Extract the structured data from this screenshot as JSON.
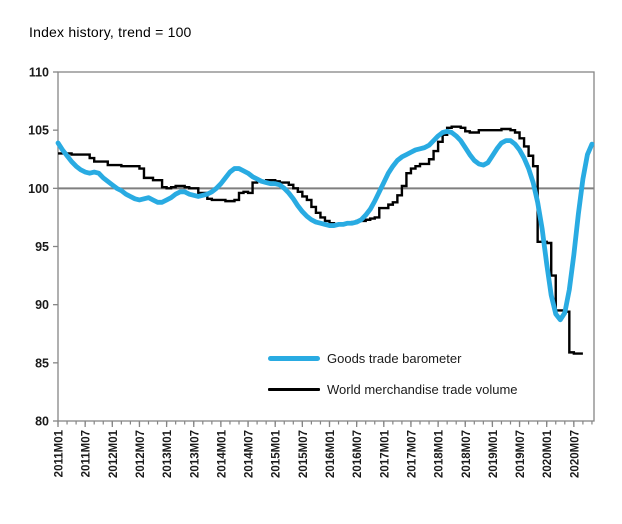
{
  "title": "Index history, trend = 100",
  "colors": {
    "barometer": "#29ABE2",
    "volume": "#000000",
    "reference_line": "#7f7f7f",
    "frame": "#858585",
    "tick_text": "#1a1a1a"
  },
  "legend": {
    "items": [
      {
        "label": "Goods trade barometer",
        "color": "#29ABE2"
      },
      {
        "label": "World merchandise trade volume",
        "color": "#000000"
      }
    ]
  },
  "chart_data": {
    "type": "line",
    "title": "Index history, trend = 100",
    "xlabel": "",
    "ylabel": "",
    "ylim": [
      80,
      110
    ],
    "yticks": [
      80,
      85,
      90,
      95,
      100,
      105,
      110
    ],
    "reference_line": 100,
    "grid": "horizontal line at 100 only",
    "legend_position": "inside lower-center",
    "x_unit": "month",
    "x_start": "2011M01",
    "x_tick_labels": [
      "2011M01",
      "2011M07",
      "2012M01",
      "2012M07",
      "2013M01",
      "2013M07",
      "2014M01",
      "2014M07",
      "2015M01",
      "2015M07",
      "2016M01",
      "2016M07",
      "2017M01",
      "2017M07",
      "2018M01",
      "2018M07",
      "2019M01",
      "2019M07",
      "2020M01",
      "2020M07"
    ],
    "x_major_tick_every_months": 6,
    "x_minor_tick_every_months": 2,
    "series": [
      {
        "name": "Goods trade barometer",
        "color": "#29ABE2",
        "style": "smooth",
        "start": "2011M01",
        "end": "2020M11",
        "values": [
          103.9,
          103.3,
          102.8,
          102.3,
          101.9,
          101.6,
          101.4,
          101.3,
          101.4,
          101.3,
          100.9,
          100.6,
          100.3,
          100.0,
          99.8,
          99.5,
          99.3,
          99.1,
          99.0,
          99.1,
          99.2,
          99.0,
          98.8,
          98.8,
          99.0,
          99.2,
          99.5,
          99.7,
          99.7,
          99.5,
          99.4,
          99.3,
          99.4,
          99.5,
          99.7,
          100.0,
          100.4,
          100.9,
          101.4,
          101.7,
          101.7,
          101.5,
          101.3,
          101.0,
          100.8,
          100.6,
          100.5,
          100.4,
          100.4,
          100.3,
          100.0,
          99.6,
          99.1,
          98.5,
          98.0,
          97.6,
          97.3,
          97.1,
          97.0,
          96.9,
          96.8,
          96.8,
          96.9,
          96.9,
          97.0,
          97.0,
          97.1,
          97.3,
          97.7,
          98.2,
          98.9,
          99.7,
          100.5,
          101.3,
          101.9,
          102.4,
          102.7,
          102.9,
          103.1,
          103.3,
          103.4,
          103.5,
          103.7,
          104.1,
          104.5,
          104.8,
          104.9,
          104.8,
          104.5,
          104.1,
          103.5,
          102.9,
          102.4,
          102.1,
          102.0,
          102.2,
          102.8,
          103.4,
          103.9,
          104.1,
          104.1,
          103.8,
          103.3,
          102.6,
          101.7,
          100.5,
          98.8,
          96.5,
          93.5,
          90.8,
          89.2,
          88.7,
          89.3,
          91.3,
          94.3,
          97.8,
          100.8,
          102.9,
          103.8
        ]
      },
      {
        "name": "World merchandise trade volume",
        "color": "#000000",
        "style": "step",
        "start": "2011M01",
        "end": "2020M09",
        "values": [
          103.0,
          103.0,
          103.0,
          102.9,
          102.9,
          102.9,
          102.9,
          102.6,
          102.3,
          102.3,
          102.3,
          102.0,
          102.0,
          102.0,
          101.9,
          101.9,
          101.9,
          101.9,
          101.7,
          100.9,
          100.9,
          100.7,
          100.7,
          100.1,
          100.0,
          100.1,
          100.2,
          100.2,
          100.1,
          100.0,
          100.0,
          99.6,
          99.6,
          99.1,
          99.0,
          99.0,
          99.0,
          98.9,
          98.9,
          99.0,
          99.6,
          99.7,
          99.6,
          100.5,
          100.6,
          100.6,
          100.7,
          100.7,
          100.6,
          100.5,
          100.5,
          100.3,
          100.0,
          99.7,
          99.3,
          99.0,
          98.4,
          97.9,
          97.5,
          97.2,
          97.0,
          96.9,
          96.9,
          97.0,
          97.0,
          97.1,
          97.2,
          97.2,
          97.3,
          97.4,
          97.5,
          98.3,
          98.3,
          98.6,
          98.8,
          99.4,
          100.2,
          101.3,
          101.7,
          101.9,
          102.1,
          102.1,
          102.5,
          103.2,
          104.0,
          104.6,
          105.2,
          105.3,
          105.3,
          105.2,
          104.9,
          104.8,
          104.8,
          105.0,
          105.0,
          105.0,
          105.0,
          105.0,
          105.1,
          105.1,
          105.0,
          104.8,
          104.3,
          103.6,
          102.8,
          101.9,
          95.4,
          95.4,
          95.3,
          92.5,
          89.5,
          89.5,
          89.4,
          85.9,
          85.8,
          85.8,
          85.8
        ]
      }
    ]
  }
}
